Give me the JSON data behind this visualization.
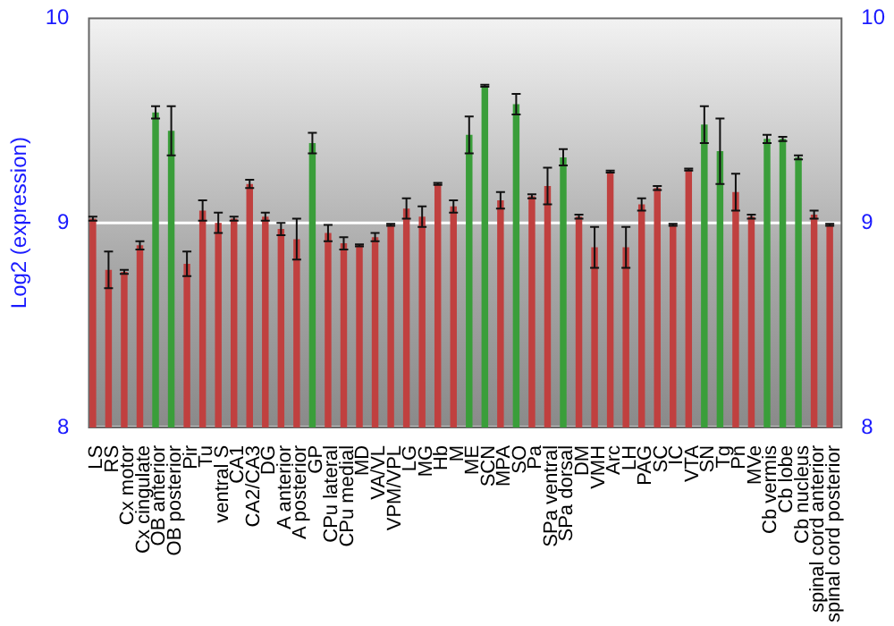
{
  "chart_data": {
    "type": "bar",
    "ylabel": "Log2 (expression)",
    "categories": [
      "LS",
      "RS",
      "Cx motor",
      "Cx cingulate",
      "OB anterior",
      "OB posterior",
      "Pir",
      "Tu",
      "ventral S",
      "CA1",
      "CA2/CA3",
      "DG",
      "A anterior",
      "A posterior",
      "GP",
      "CPu lateral",
      "CPu medial",
      "MD",
      "VA/VL",
      "VPM/VPL",
      "LG",
      "MG",
      "Hb",
      "M",
      "ME",
      "SCN",
      "MPA",
      "SO",
      "Pa",
      "SPa ventral",
      "SPa dorsal",
      "DM",
      "VMH",
      "Arc",
      "LH",
      "PAG",
      "SC",
      "IC",
      "VTA",
      "SN",
      "Tg",
      "Pn",
      "MVe",
      "Cb vermis",
      "Cb lobe",
      "Cb nucleus",
      "spinal cord anterior",
      "spinal cord posterior"
    ],
    "values": [
      9.02,
      8.77,
      8.76,
      8.89,
      9.54,
      9.45,
      8.8,
      9.06,
      9.0,
      9.02,
      9.19,
      9.03,
      8.97,
      8.92,
      9.39,
      8.95,
      8.9,
      8.89,
      8.93,
      8.99,
      9.07,
      9.03,
      9.19,
      9.08,
      9.43,
      9.67,
      9.11,
      9.58,
      9.13,
      9.18,
      9.32,
      9.03,
      8.88,
      9.25,
      8.88,
      9.09,
      9.17,
      8.99,
      9.26,
      9.48,
      9.35,
      9.15,
      9.03,
      9.41,
      9.41,
      9.32,
      9.04,
      8.99
    ],
    "errors": [
      0.01,
      0.09,
      0.01,
      0.02,
      0.03,
      0.12,
      0.06,
      0.05,
      0.05,
      0.01,
      0.02,
      0.02,
      0.03,
      0.1,
      0.05,
      0.04,
      0.03,
      0.005,
      0.02,
      0.005,
      0.05,
      0.05,
      0.005,
      0.03,
      0.09,
      0.005,
      0.04,
      0.05,
      0.01,
      0.09,
      0.04,
      0.01,
      0.1,
      0.005,
      0.1,
      0.03,
      0.01,
      0.005,
      0.005,
      0.09,
      0.16,
      0.09,
      0.01,
      0.02,
      0.01,
      0.01,
      0.02,
      0.005
    ],
    "colors": [
      "#c0403f",
      "#c0403f",
      "#c0403f",
      "#c0403f",
      "#3a9e3a",
      "#3a9e3a",
      "#c0403f",
      "#c0403f",
      "#c0403f",
      "#c0403f",
      "#c0403f",
      "#c0403f",
      "#c0403f",
      "#c0403f",
      "#3a9e3a",
      "#c0403f",
      "#c0403f",
      "#c0403f",
      "#c0403f",
      "#c0403f",
      "#c0403f",
      "#c0403f",
      "#c0403f",
      "#c0403f",
      "#3a9e3a",
      "#3a9e3a",
      "#c0403f",
      "#3a9e3a",
      "#c0403f",
      "#c0403f",
      "#3a9e3a",
      "#c0403f",
      "#c0403f",
      "#c0403f",
      "#c0403f",
      "#c0403f",
      "#c0403f",
      "#c0403f",
      "#c0403f",
      "#3a9e3a",
      "#3a9e3a",
      "#c0403f",
      "#c0403f",
      "#3a9e3a",
      "#3a9e3a",
      "#3a9e3a",
      "#c0403f",
      "#c0403f"
    ],
    "ylim": [
      8,
      10
    ],
    "yticks": [
      8,
      9,
      10
    ],
    "y2lim": [
      8,
      10
    ],
    "y2ticks": [
      8,
      9,
      10
    ],
    "grid": "y",
    "legend": false
  }
}
